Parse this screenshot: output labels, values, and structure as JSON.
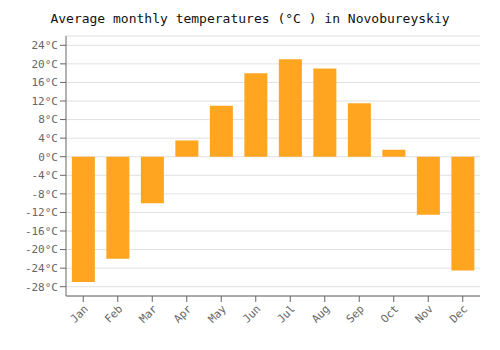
{
  "chart_data": {
    "type": "bar",
    "title": "Average monthly temperatures (°C ) in Novobureyskiy",
    "categories": [
      "Jan",
      "Feb",
      "Mar",
      "Apr",
      "May",
      "Jun",
      "Jul",
      "Aug",
      "Sep",
      "Oct",
      "Nov",
      "Dec"
    ],
    "values": [
      -27,
      -22,
      -10,
      3.5,
      11,
      18,
      21,
      19,
      11.5,
      1.5,
      -12.5,
      -24.5
    ],
    "color": "#FFA520",
    "ylim": [
      -30,
      26
    ],
    "yticks": [
      {
        "value": -28,
        "label": "-28°C"
      },
      {
        "value": -24,
        "label": "-24°C"
      },
      {
        "value": -20,
        "label": "-20°C"
      },
      {
        "value": -16,
        "label": "-16°C"
      },
      {
        "value": -12,
        "label": "-12°C"
      },
      {
        "value": -8,
        "label": "-8°C"
      },
      {
        "value": -4,
        "label": "-4°C"
      },
      {
        "value": 0,
        "label": "0°C"
      },
      {
        "value": 4,
        "label": "4°C"
      },
      {
        "value": 8,
        "label": "8°C"
      },
      {
        "value": 12,
        "label": "12°C"
      },
      {
        "value": 16,
        "label": "16°C"
      },
      {
        "value": 20,
        "label": "20°C"
      },
      {
        "value": 24,
        "label": "24°C"
      }
    ],
    "grid": true
  }
}
